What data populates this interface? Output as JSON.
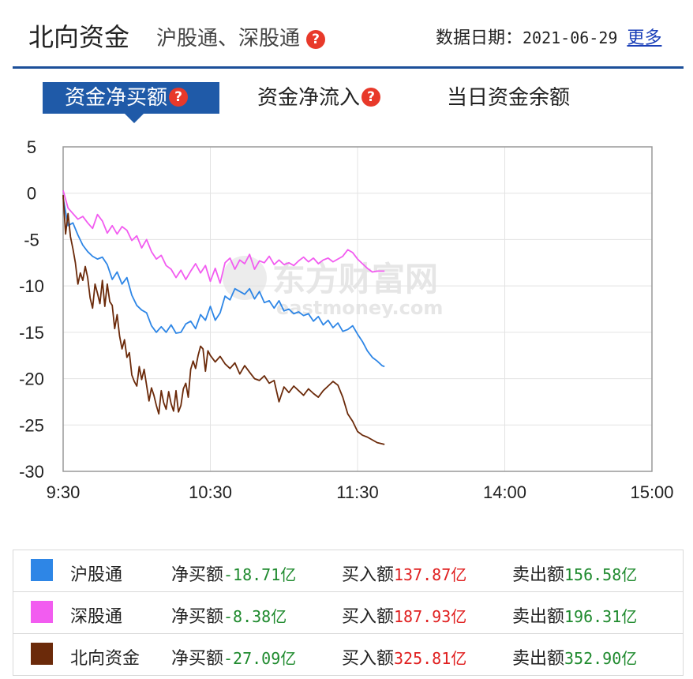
{
  "header": {
    "title": "北向资金",
    "subtitle": "沪股通、深股通",
    "date_label": "数据日期：",
    "date_value": "2021-06-29",
    "more_label": "更多"
  },
  "tabs": [
    {
      "label": "资金净买额",
      "active": true,
      "help": true
    },
    {
      "label": "资金净流入",
      "active": false,
      "help": true
    },
    {
      "label": "当日资金余额",
      "active": false,
      "help": false
    }
  ],
  "watermark": {
    "main": "东方财富网",
    "sub": "eastmoney.com"
  },
  "colors": {
    "accent": "#1f5aa8",
    "sh": "#2e86e6",
    "sz": "#f25cf0",
    "north": "#6b2a0a",
    "negative_value": "#1f8a2e",
    "positive_value": "#e02020"
  },
  "chart_data": {
    "type": "line",
    "x_ticks": [
      "9:30",
      "10:30",
      "11:30",
      "14:00",
      "15:00"
    ],
    "y_ticks": [
      5,
      0,
      -5,
      -10,
      -15,
      -20,
      -25,
      -30
    ],
    "ylim": [
      -30,
      5
    ],
    "grid": true,
    "series": [
      {
        "name": "沪股通",
        "color": "#2e86e6",
        "points": [
          [
            0,
            -0.5
          ],
          [
            2,
            -3.5
          ],
          [
            4,
            -3.2
          ],
          [
            6,
            -4.5
          ],
          [
            8,
            -5.6
          ],
          [
            10,
            -6.3
          ],
          [
            12,
            -6.8
          ],
          [
            14,
            -7.1
          ],
          [
            16,
            -6.9
          ],
          [
            18,
            -7.7
          ],
          [
            20,
            -9.3
          ],
          [
            22,
            -8.5
          ],
          [
            24,
            -9.8
          ],
          [
            26,
            -9.1
          ],
          [
            28,
            -11.0
          ],
          [
            30,
            -12.1
          ],
          [
            32,
            -12.6
          ],
          [
            34,
            -12.9
          ],
          [
            36,
            -14.3
          ],
          [
            38,
            -15.0
          ],
          [
            40,
            -14.4
          ],
          [
            42,
            -15.0
          ],
          [
            44,
            -14.2
          ],
          [
            46,
            -15.1
          ],
          [
            48,
            -15.0
          ],
          [
            50,
            -14.1
          ],
          [
            52,
            -13.8
          ],
          [
            54,
            -14.6
          ],
          [
            56,
            -13.1
          ],
          [
            58,
            -13.7
          ],
          [
            60,
            -12.2
          ],
          [
            62,
            -13.7
          ],
          [
            64,
            -12.9
          ],
          [
            66,
            -11.1
          ],
          [
            68,
            -11.5
          ],
          [
            70,
            -10.3
          ],
          [
            72,
            -10.6
          ],
          [
            74,
            -10.9
          ],
          [
            76,
            -10.3
          ],
          [
            78,
            -11.4
          ],
          [
            80,
            -10.6
          ],
          [
            82,
            -11.8
          ],
          [
            84,
            -11.6
          ],
          [
            86,
            -12.4
          ],
          [
            88,
            -11.6
          ],
          [
            90,
            -12.7
          ],
          [
            92,
            -12.5
          ],
          [
            94,
            -13.0
          ],
          [
            96,
            -12.8
          ],
          [
            98,
            -13.2
          ],
          [
            100,
            -13.0
          ],
          [
            102,
            -13.8
          ],
          [
            104,
            -13.3
          ],
          [
            106,
            -14.2
          ],
          [
            108,
            -13.7
          ],
          [
            110,
            -14.5
          ],
          [
            112,
            -14.0
          ],
          [
            114,
            -14.9
          ],
          [
            116,
            -14.7
          ],
          [
            118,
            -14.3
          ],
          [
            120,
            -15.2
          ],
          [
            122,
            -16.0
          ],
          [
            124,
            -17.0
          ],
          [
            126,
            -17.7
          ],
          [
            128,
            -18.1
          ],
          [
            130,
            -18.6
          ],
          [
            131,
            -18.7
          ]
        ]
      },
      {
        "name": "深股通",
        "color": "#f25cf0",
        "points": [
          [
            0,
            0.3
          ],
          [
            2,
            -1.6
          ],
          [
            4,
            -2.2
          ],
          [
            6,
            -2.8
          ],
          [
            8,
            -2.5
          ],
          [
            10,
            -3.2
          ],
          [
            12,
            -3.8
          ],
          [
            14,
            -2.3
          ],
          [
            16,
            -3.0
          ],
          [
            18,
            -4.3
          ],
          [
            20,
            -3.5
          ],
          [
            22,
            -4.4
          ],
          [
            24,
            -3.6
          ],
          [
            26,
            -4.0
          ],
          [
            28,
            -5.1
          ],
          [
            30,
            -4.6
          ],
          [
            32,
            -5.9
          ],
          [
            34,
            -5.0
          ],
          [
            36,
            -6.3
          ],
          [
            38,
            -7.1
          ],
          [
            40,
            -6.7
          ],
          [
            42,
            -7.8
          ],
          [
            44,
            -8.2
          ],
          [
            46,
            -9.1
          ],
          [
            48,
            -8.3
          ],
          [
            50,
            -9.3
          ],
          [
            52,
            -8.4
          ],
          [
            54,
            -7.6
          ],
          [
            56,
            -8.6
          ],
          [
            58,
            -7.8
          ],
          [
            60,
            -9.5
          ],
          [
            62,
            -8.1
          ],
          [
            64,
            -9.7
          ],
          [
            66,
            -7.5
          ],
          [
            68,
            -7.0
          ],
          [
            70,
            -8.2
          ],
          [
            72,
            -7.2
          ],
          [
            74,
            -7.6
          ],
          [
            76,
            -6.6
          ],
          [
            78,
            -8.2
          ],
          [
            80,
            -7.3
          ],
          [
            82,
            -7.5
          ],
          [
            84,
            -6.8
          ],
          [
            86,
            -7.7
          ],
          [
            88,
            -7.2
          ],
          [
            90,
            -7.7
          ],
          [
            92,
            -7.5
          ],
          [
            94,
            -7.8
          ],
          [
            96,
            -7.3
          ],
          [
            98,
            -6.9
          ],
          [
            100,
            -7.4
          ],
          [
            102,
            -7.0
          ],
          [
            104,
            -7.6
          ],
          [
            106,
            -7.2
          ],
          [
            108,
            -7.0
          ],
          [
            110,
            -7.4
          ],
          [
            112,
            -7.1
          ],
          [
            114,
            -6.8
          ],
          [
            116,
            -6.1
          ],
          [
            118,
            -6.4
          ],
          [
            120,
            -7.1
          ],
          [
            122,
            -7.6
          ],
          [
            124,
            -8.1
          ],
          [
            126,
            -8.5
          ],
          [
            128,
            -8.4
          ],
          [
            130,
            -8.4
          ],
          [
            131,
            -8.4
          ]
        ]
      },
      {
        "name": "北向资金",
        "color": "#6b2a0a",
        "points": [
          [
            0,
            -0.2
          ],
          [
            1,
            -4.4
          ],
          [
            2,
            -2.2
          ],
          [
            3,
            -4.7
          ],
          [
            4,
            -6.0
          ],
          [
            5,
            -7.5
          ],
          [
            6,
            -9.8
          ],
          [
            7,
            -8.6
          ],
          [
            8,
            -9.4
          ],
          [
            9,
            -7.9
          ],
          [
            10,
            -9.1
          ],
          [
            11,
            -11.3
          ],
          [
            12,
            -12.4
          ],
          [
            13,
            -9.8
          ],
          [
            14,
            -10.8
          ],
          [
            15,
            -11.9
          ],
          [
            16,
            -9.4
          ],
          [
            17,
            -12.2
          ],
          [
            18,
            -9.8
          ],
          [
            19,
            -11.7
          ],
          [
            20,
            -12.1
          ],
          [
            21,
            -14.6
          ],
          [
            22,
            -13.1
          ],
          [
            23,
            -15.4
          ],
          [
            24,
            -16.8
          ],
          [
            25,
            -15.8
          ],
          [
            26,
            -17.7
          ],
          [
            27,
            -17.2
          ],
          [
            28,
            -19.6
          ],
          [
            29,
            -20.3
          ],
          [
            30,
            -20.8
          ],
          [
            31,
            -18.7
          ],
          [
            32,
            -20.1
          ],
          [
            33,
            -19.0
          ],
          [
            34,
            -20.7
          ],
          [
            35,
            -22.4
          ],
          [
            36,
            -21.0
          ],
          [
            37,
            -21.8
          ],
          [
            38,
            -22.9
          ],
          [
            39,
            -23.8
          ],
          [
            40,
            -21.3
          ],
          [
            41,
            -22.6
          ],
          [
            42,
            -23.3
          ],
          [
            43,
            -21.4
          ],
          [
            44,
            -22.7
          ],
          [
            45,
            -23.5
          ],
          [
            46,
            -21.3
          ],
          [
            47,
            -23.6
          ],
          [
            48,
            -22.9
          ],
          [
            49,
            -21.1
          ],
          [
            50,
            -20.5
          ],
          [
            51,
            -22.0
          ],
          [
            52,
            -19.0
          ],
          [
            53,
            -18.1
          ],
          [
            54,
            -18.9
          ],
          [
            55,
            -17.5
          ],
          [
            56,
            -16.5
          ],
          [
            57,
            -16.8
          ],
          [
            58,
            -19.2
          ],
          [
            59,
            -17.0
          ],
          [
            60,
            -17.5
          ],
          [
            62,
            -18.2
          ],
          [
            64,
            -17.6
          ],
          [
            66,
            -18.4
          ],
          [
            68,
            -18.9
          ],
          [
            70,
            -18.3
          ],
          [
            72,
            -19.5
          ],
          [
            74,
            -18.6
          ],
          [
            76,
            -19.3
          ],
          [
            78,
            -20.0
          ],
          [
            80,
            -20.2
          ],
          [
            82,
            -19.7
          ],
          [
            84,
            -20.5
          ],
          [
            86,
            -20.2
          ],
          [
            88,
            -22.5
          ],
          [
            90,
            -20.9
          ],
          [
            92,
            -21.5
          ],
          [
            94,
            -20.8
          ],
          [
            96,
            -21.3
          ],
          [
            98,
            -21.8
          ],
          [
            100,
            -21.1
          ],
          [
            102,
            -21.6
          ],
          [
            104,
            -22.0
          ],
          [
            106,
            -21.3
          ],
          [
            108,
            -20.8
          ],
          [
            110,
            -20.3
          ],
          [
            112,
            -20.7
          ],
          [
            114,
            -22.0
          ],
          [
            116,
            -23.8
          ],
          [
            118,
            -24.6
          ],
          [
            120,
            -25.7
          ],
          [
            122,
            -26.1
          ],
          [
            124,
            -26.3
          ],
          [
            126,
            -26.6
          ],
          [
            128,
            -26.9
          ],
          [
            131,
            -27.1
          ]
        ]
      }
    ]
  },
  "legend": [
    {
      "name": "沪股通",
      "color": "#2e86e6",
      "net_label": "净买额",
      "net_value": "-18.71亿",
      "buy_label": "买入额",
      "buy_value": "137.87亿",
      "sell_label": "卖出额",
      "sell_value": "156.58亿"
    },
    {
      "name": "深股通",
      "color": "#f25cf0",
      "net_label": "净买额",
      "net_value": "-8.38亿",
      "buy_label": "买入额",
      "buy_value": "187.93亿",
      "sell_label": "卖出额",
      "sell_value": "196.31亿"
    },
    {
      "name": "北向资金",
      "color": "#6b2a0a",
      "net_label": "净买额",
      "net_value": "-27.09亿",
      "buy_label": "买入额",
      "buy_value": "325.81亿",
      "sell_label": "卖出额",
      "sell_value": "352.90亿"
    }
  ]
}
